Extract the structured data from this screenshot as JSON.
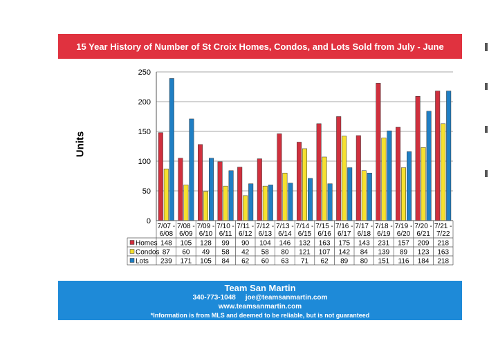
{
  "banner": {
    "title": "15 Year History of Number of St Croix Homes, Condos, and Lots Sold from July - June"
  },
  "chart_data": {
    "type": "bar",
    "title": "15 Year History of Number of St Croix Homes, Condos, and Lots Sold from July - June",
    "ylabel": "Units",
    "xlabel": "",
    "ylim": [
      0,
      250
    ],
    "yticks": [
      0,
      50,
      100,
      150,
      200,
      250
    ],
    "grid": true,
    "legend": "data-table-left",
    "categories": [
      [
        "7/07 -",
        "6/08"
      ],
      [
        "7/08 -",
        "6/09"
      ],
      [
        "7/09 -",
        "6/10"
      ],
      [
        "7/10 -",
        "6/11"
      ],
      [
        "7/11 -",
        "6/12"
      ],
      [
        "7/12 -",
        "6/13"
      ],
      [
        "7/13 -",
        "6/14"
      ],
      [
        "7/14 -",
        "6/15"
      ],
      [
        "7/15 -",
        "6/16"
      ],
      [
        "7/16 -",
        "6/17"
      ],
      [
        "7/17 -",
        "6/18"
      ],
      [
        "7/18 -",
        "6/19"
      ],
      [
        "7/19 -",
        "6/20"
      ],
      [
        "7/20 -",
        "6/21"
      ],
      [
        "7/21 -",
        "7/22"
      ]
    ],
    "series": [
      {
        "name": "Homes",
        "color": "#d0303e",
        "values": [
          148,
          105,
          128,
          99,
          90,
          104,
          146,
          132,
          163,
          175,
          143,
          231,
          157,
          209,
          218
        ]
      },
      {
        "name": "Condos",
        "color": "#f5e030",
        "values": [
          87,
          60,
          49,
          58,
          42,
          58,
          80,
          121,
          107,
          142,
          84,
          139,
          89,
          123,
          163
        ]
      },
      {
        "name": "Lots",
        "color": "#1f7fc4",
        "values": [
          239,
          171,
          105,
          84,
          62,
          60,
          63,
          71,
          62,
          89,
          80,
          151,
          116,
          184,
          218
        ]
      }
    ]
  },
  "footer": {
    "team": "Team San Martin",
    "contact": "340-773-1048     joe@teamsanmartin.com",
    "website": "www.teamsanmartin.com",
    "disclaimer": "*Information is from MLS and deemed to be reliable, but is not guaranteed"
  }
}
